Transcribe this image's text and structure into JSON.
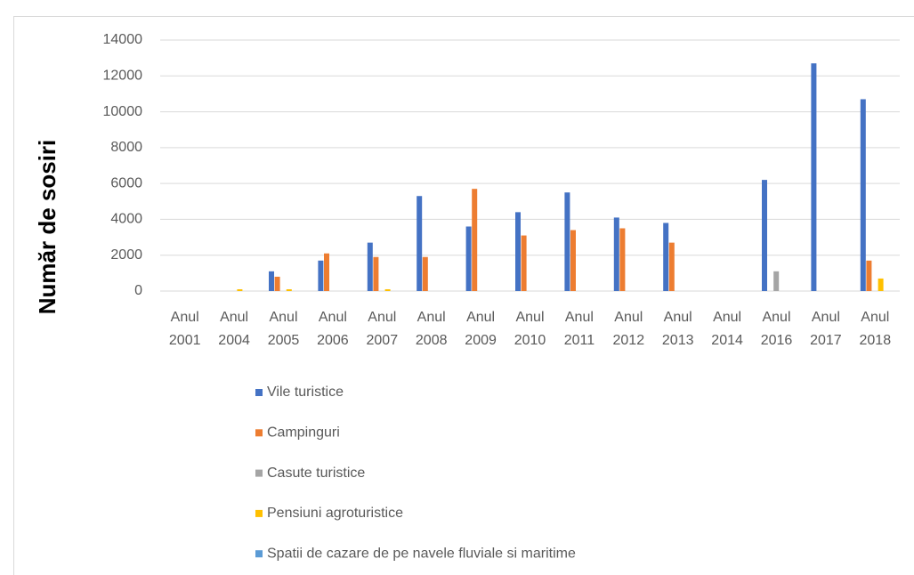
{
  "chart_data": {
    "type": "bar",
    "ylabel": "Număr de sosiri",
    "categories": [
      "Anul 2001",
      "Anul 2004",
      "Anul 2005",
      "Anul 2006",
      "Anul 2007",
      "Anul 2008",
      "Anul 2009",
      "Anul 2010",
      "Anul 2011",
      "Anul 2012",
      "Anul 2013",
      "Anul 2014",
      "Anul 2016",
      "Anul 2017",
      "Anul 2018"
    ],
    "series": [
      {
        "name": "Vile turistice",
        "color": "#4472c4",
        "values": [
          0,
          0,
          1100,
          1700,
          2700,
          5300,
          3600,
          4400,
          5500,
          4100,
          3800,
          0,
          6200,
          12700,
          10700
        ]
      },
      {
        "name": "Campinguri",
        "color": "#ed7d31",
        "values": [
          0,
          0,
          800,
          2100,
          1900,
          1900,
          5700,
          3100,
          3400,
          3500,
          2700,
          0,
          0,
          0,
          1700
        ]
      },
      {
        "name": "Casute turistice",
        "color": "#a5a5a5",
        "values": [
          0,
          0,
          0,
          0,
          0,
          0,
          0,
          0,
          0,
          0,
          0,
          0,
          1100,
          0,
          0
        ]
      },
      {
        "name": "Pensiuni agroturistice",
        "color": "#ffc000",
        "values": [
          0,
          100,
          100,
          0,
          100,
          0,
          0,
          0,
          0,
          0,
          0,
          0,
          0,
          0,
          700
        ]
      },
      {
        "name": "Spatii de cazare de pe navele fluviale si maritime",
        "color": "#5b9bd5",
        "values": [
          0,
          0,
          0,
          0,
          0,
          0,
          0,
          0,
          0,
          0,
          0,
          0,
          0,
          0,
          0
        ]
      }
    ],
    "ylim": [
      0,
      14000
    ],
    "yticks": [
      0,
      2000,
      4000,
      6000,
      8000,
      10000,
      12000,
      14000
    ],
    "grid": true,
    "legend": "bottom"
  }
}
